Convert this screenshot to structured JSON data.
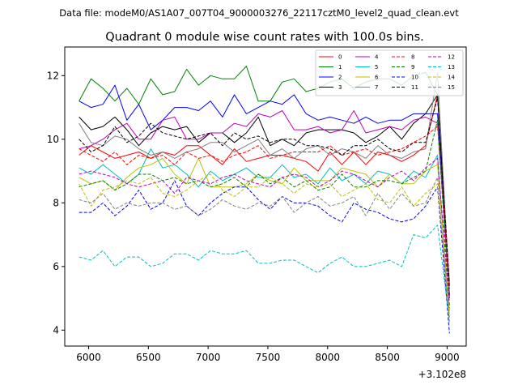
{
  "chart_data": {
    "type": "line",
    "suptitle": "Data file: modeM0/AS1A07_007T04_9000003276_22117cztM0_level2_quad_clean.evt",
    "title": "Quadrant 0 module wise count rates with 100.0s bins.",
    "xlabel": "",
    "ylabel": "",
    "offset_text": "+3.102e8",
    "xlim": [
      5800,
      9160
    ],
    "ylim": [
      3.5,
      12.9
    ],
    "xticks": [
      6000,
      6500,
      7000,
      7500,
      8000,
      8500,
      9000
    ],
    "yticks": [
      4,
      6,
      8,
      10,
      12
    ],
    "x": [
      5920,
      6020,
      6120,
      6220,
      6320,
      6420,
      6520,
      6620,
      6720,
      6820,
      6920,
      7020,
      7120,
      7220,
      7320,
      7420,
      7520,
      7620,
      7720,
      7820,
      7920,
      8020,
      8120,
      8220,
      8320,
      8420,
      8520,
      8620,
      8720,
      8820,
      8920,
      9020
    ],
    "legend_position": "top-right",
    "series": [
      {
        "name": "0",
        "color": "#ff0000",
        "dash": "solid",
        "values": [
          9.5,
          9.8,
          9.6,
          9.4,
          9.5,
          9.6,
          9.4,
          9.6,
          9.5,
          9.8,
          9.8,
          9.5,
          9.2,
          9.7,
          9.3,
          9.4,
          9.5,
          9.5,
          9.4,
          9.3,
          9.0,
          9.6,
          9.2,
          9.6,
          9.2,
          9.6,
          9.5,
          9.3,
          9.5,
          9.8,
          11.4,
          5.5
        ]
      },
      {
        "name": "1",
        "color": "#008000",
        "dash": "solid",
        "values": [
          11.2,
          11.9,
          11.6,
          11.2,
          11.6,
          11.1,
          11.9,
          11.4,
          11.5,
          12.2,
          11.7,
          12.0,
          11.9,
          11.9,
          12.3,
          11.2,
          11.2,
          11.8,
          11.9,
          11.5,
          11.6,
          11.8,
          11.9,
          11.6,
          11.8,
          11.9,
          11.9,
          11.7,
          12.0,
          12.1,
          11.4,
          5.3
        ]
      },
      {
        "name": "2",
        "color": "#0000ff",
        "dash": "solid",
        "values": [
          11.2,
          11.0,
          11.1,
          11.7,
          10.6,
          11.1,
          10.3,
          10.6,
          11.0,
          11.0,
          10.9,
          11.2,
          10.7,
          11.4,
          10.8,
          11.0,
          11.2,
          11.1,
          11.4,
          10.8,
          10.6,
          10.7,
          10.6,
          10.5,
          10.7,
          10.5,
          10.6,
          10.6,
          10.8,
          10.8,
          10.8,
          5.0
        ]
      },
      {
        "name": "3",
        "color": "#000000",
        "dash": "solid",
        "values": [
          10.7,
          10.3,
          10.4,
          10.7,
          10.3,
          9.8,
          10.2,
          10.4,
          10.3,
          10.4,
          9.9,
          10.2,
          10.2,
          9.9,
          10.2,
          10.7,
          9.8,
          10.0,
          9.8,
          10.2,
          10.3,
          10.3,
          10.3,
          10.2,
          9.9,
          10.1,
          10.4,
          10.0,
          10.5,
          10.8,
          11.4,
          5.1
        ]
      },
      {
        "name": "4",
        "color": "#bf00bf",
        "dash": "solid",
        "values": [
          9.7,
          9.8,
          10.0,
          10.3,
          10.5,
          10.0,
          10.0,
          10.6,
          10.7,
          10.0,
          10.0,
          10.2,
          10.2,
          10.5,
          10.4,
          10.8,
          10.7,
          10.9,
          10.3,
          10.3,
          10.4,
          10.2,
          10.3,
          10.9,
          10.2,
          10.3,
          10.4,
          10.3,
          10.6,
          10.7,
          10.5,
          5.2
        ]
      },
      {
        "name": "5",
        "color": "#00bfbf",
        "dash": "solid",
        "values": [
          9.1,
          8.9,
          9.2,
          8.9,
          8.6,
          8.9,
          9.7,
          9.1,
          9.2,
          8.9,
          8.5,
          9.0,
          8.7,
          8.9,
          9.1,
          8.8,
          8.8,
          9.2,
          8.8,
          8.9,
          8.6,
          9.1,
          8.7,
          8.9,
          8.6,
          9.0,
          8.9,
          8.6,
          9.0,
          8.8,
          9.5,
          4.4
        ]
      },
      {
        "name": "6",
        "color": "#bfbf00",
        "dash": "solid",
        "values": [
          8.8,
          8.6,
          8.7,
          8.4,
          8.8,
          9.1,
          9.2,
          9.4,
          8.9,
          8.6,
          9.4,
          8.5,
          8.5,
          8.5,
          8.6,
          8.9,
          8.7,
          8.6,
          9.1,
          8.7,
          8.7,
          8.7,
          9.1,
          9.0,
          8.9,
          8.5,
          8.9,
          8.6,
          8.6,
          9.0,
          9.2,
          4.6
        ]
      },
      {
        "name": "7",
        "color": "#808080",
        "dash": "solid",
        "values": [
          10.5,
          9.9,
          9.8,
          10.1,
          10.0,
          9.7,
          9.5,
          9.6,
          9.4,
          9.6,
          9.7,
          9.9,
          9.9,
          9.6,
          9.8,
          10.0,
          9.5,
          9.7,
          9.4,
          9.7,
          9.8,
          9.5,
          9.7,
          9.6,
          9.4,
          9.8,
          9.5,
          9.4,
          9.6,
          9.7,
          12.1,
          5.2
        ]
      },
      {
        "name": "8",
        "color": "#ff0000",
        "dash": "dashed",
        "values": [
          9.7,
          9.5,
          9.3,
          9.6,
          9.2,
          9.5,
          9.4,
          9.5,
          9.2,
          9.6,
          9.4,
          9.5,
          9.3,
          9.5,
          9.6,
          9.8,
          9.4,
          9.5,
          9.6,
          9.6,
          9.6,
          9.8,
          9.5,
          9.6,
          9.7,
          9.5,
          9.6,
          9.7,
          9.9,
          10.1,
          10.4,
          5.3
        ]
      },
      {
        "name": "9",
        "color": "#008000",
        "dash": "dashed",
        "values": [
          8.5,
          8.6,
          8.7,
          8.4,
          8.6,
          8.9,
          8.9,
          8.7,
          8.8,
          8.6,
          8.7,
          8.5,
          8.6,
          8.8,
          8.5,
          8.9,
          8.6,
          8.8,
          8.5,
          8.7,
          8.4,
          8.5,
          8.9,
          8.5,
          8.5,
          8.7,
          8.7,
          8.6,
          8.8,
          9.0,
          10.6,
          4.7
        ]
      },
      {
        "name": "10",
        "color": "#0000ff",
        "dash": "dashed",
        "values": [
          7.7,
          7.7,
          8.0,
          7.6,
          7.9,
          8.4,
          7.8,
          8.0,
          8.7,
          7.9,
          7.6,
          8.0,
          8.3,
          8.5,
          8.5,
          8.1,
          7.8,
          8.2,
          8.0,
          8.0,
          7.9,
          7.6,
          7.4,
          8.0,
          7.8,
          7.7,
          7.5,
          7.4,
          7.5,
          7.9,
          8.5,
          3.9
        ]
      },
      {
        "name": "11",
        "color": "#000000",
        "dash": "dashed",
        "values": [
          10.0,
          9.6,
          9.8,
          10.4,
          9.9,
          10.1,
          10.5,
          10.2,
          10.1,
          10.0,
          10.1,
          10.2,
          9.8,
          10.2,
          10.0,
          10.1,
          9.9,
          10.0,
          10.0,
          9.8,
          9.8,
          9.7,
          9.5,
          9.8,
          9.8,
          10.0,
          9.7,
          9.6,
          9.9,
          9.9,
          11.3,
          5.4
        ]
      },
      {
        "name": "12",
        "color": "#bf00bf",
        "dash": "dashed",
        "values": [
          8.9,
          9.0,
          8.9,
          8.8,
          8.6,
          8.5,
          8.6,
          8.7,
          8.3,
          8.8,
          8.7,
          8.6,
          8.8,
          8.9,
          8.7,
          8.6,
          8.5,
          8.8,
          8.9,
          8.8,
          8.5,
          8.7,
          9.0,
          8.9,
          8.7,
          8.5,
          8.8,
          9.0,
          8.7,
          9.1,
          9.4,
          4.8
        ]
      },
      {
        "name": "13",
        "color": "#00bfbf",
        "dash": "dashed",
        "values": [
          6.3,
          6.2,
          6.5,
          6.0,
          6.3,
          6.3,
          6.0,
          6.1,
          6.4,
          6.4,
          6.2,
          6.5,
          6.4,
          6.4,
          6.5,
          6.1,
          6.1,
          6.2,
          6.2,
          6.0,
          5.8,
          6.1,
          6.3,
          6.0,
          6.0,
          6.1,
          6.2,
          6.0,
          7.0,
          6.9,
          7.3,
          4.3
        ]
      },
      {
        "name": "14",
        "color": "#bfbf00",
        "dash": "dashed",
        "values": [
          8.6,
          7.9,
          8.4,
          8.5,
          8.7,
          8.6,
          8.8,
          8.3,
          8.2,
          8.4,
          8.7,
          8.9,
          8.4,
          8.2,
          8.5,
          8.5,
          8.8,
          8.6,
          8.3,
          8.6,
          8.5,
          8.6,
          8.2,
          8.4,
          8.6,
          8.1,
          8.0,
          8.5,
          7.9,
          8.3,
          8.6,
          4.4
        ]
      },
      {
        "name": "15",
        "color": "#808080",
        "dash": "dashed",
        "values": [
          8.1,
          8.0,
          8.3,
          7.8,
          8.0,
          7.9,
          8.0,
          8.0,
          7.8,
          7.9,
          7.6,
          7.8,
          8.1,
          7.9,
          7.8,
          8.0,
          7.9,
          8.2,
          7.7,
          8.0,
          8.2,
          7.9,
          8.0,
          8.2,
          7.6,
          8.3,
          7.8,
          8.3,
          7.9,
          8.0,
          8.8,
          4.2
        ]
      }
    ]
  }
}
